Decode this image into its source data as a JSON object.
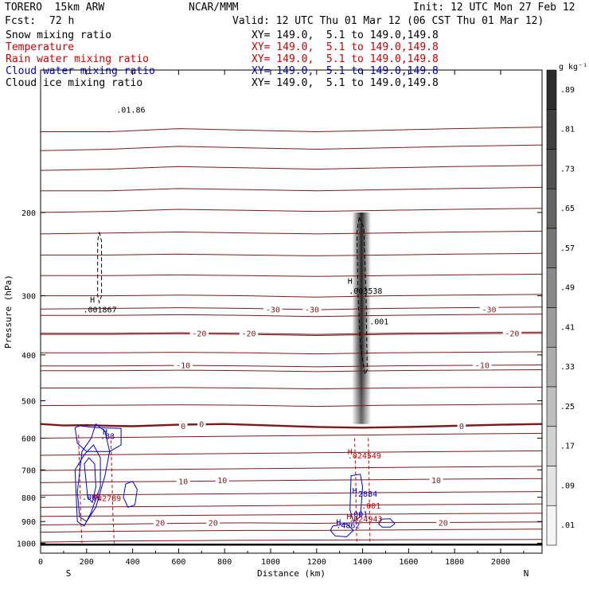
{
  "header": {
    "model": "TORERO  15km ARW",
    "org": "NCAR/MMM",
    "init": "Init: 12 UTC Mon 27 Feb 12",
    "fcst_label": "Fcst:",
    "fcst_value": "72 h",
    "valid": "Valid: 12 UTC Thu 01 Mar 12 (06 CST Thu 01 Mar 12)"
  },
  "fields": [
    {
      "name": "Snow mixing ratio",
      "color": "#000000",
      "xy": "XY= 149.0,  5.1 to 149.0,149.8"
    },
    {
      "name": "Temperature",
      "color": "#cc0000",
      "xy": "XY= 149.0,  5.1 to 149.0,149.8"
    },
    {
      "name": "Rain water mixing ratio",
      "color": "#cc0000",
      "xy": "XY= 149.0,  5.1 to 149.0,149.8"
    },
    {
      "name": "Cloud water mixing ratio",
      "color": "#0000cc",
      "xy": "XY= 149.0,  5.1 to 149.0,149.8"
    },
    {
      "name": "Cloud ice mixing ratio",
      "color": "#000000",
      "xy": "XY= 149.0,  5.1 to 149.0,149.8"
    }
  ],
  "chart_data": {
    "type": "contour",
    "xlabel": "Distance (km)",
    "ylabel": "Pressure (hPa)",
    "xlim": [
      0,
      2180
    ],
    "ylim": [
      1050,
      100
    ],
    "x_ticks": [
      0,
      200,
      400,
      600,
      800,
      1000,
      1200,
      1400,
      1600,
      1800,
      2000
    ],
    "y_ticks": [
      200,
      300,
      400,
      500,
      600,
      700,
      800,
      900,
      1000
    ],
    "endpoints": {
      "left": "S",
      "right": "N"
    },
    "colorbar": {
      "unit": "g kg⁻¹",
      "labels": [
        ".01",
        ".09",
        ".17",
        ".25",
        ".33",
        ".41",
        ".49",
        ".57",
        ".65",
        ".73",
        ".81",
        ".89"
      ],
      "range": [
        0,
        0.97
      ]
    },
    "temperature_labels": [
      {
        "text": "-30",
        "x": 1010,
        "p": 320
      },
      {
        "text": "-30",
        "x": 1180,
        "p": 320
      },
      {
        "text": "-30",
        "x": 1950,
        "p": 320
      },
      {
        "text": "-20",
        "x": 690,
        "p": 360
      },
      {
        "text": "-20",
        "x": 905,
        "p": 360
      },
      {
        "text": "-20",
        "x": 2050,
        "p": 360
      },
      {
        "text": "-10",
        "x": 620,
        "p": 420
      },
      {
        "text": "-10",
        "x": 1920,
        "p": 420
      },
      {
        "text": "0",
        "x": 620,
        "p": 565
      },
      {
        "text": "0",
        "x": 700,
        "p": 560
      },
      {
        "text": "0",
        "x": 1830,
        "p": 565
      },
      {
        "text": "10",
        "x": 620,
        "p": 740
      },
      {
        "text": "10",
        "x": 790,
        "p": 735
      },
      {
        "text": "10",
        "x": 1720,
        "p": 735
      },
      {
        "text": "20",
        "x": 520,
        "p": 905
      },
      {
        "text": "20",
        "x": 750,
        "p": 905
      },
      {
        "text": "20",
        "x": 1750,
        "p": 905
      }
    ],
    "temperature_isotherms": [
      {
        "x": [
          0,
          300,
          600,
          900,
          1200,
          1500,
          1800,
          2180
        ],
        "p": [
          135,
          135,
          133,
          134,
          135,
          134,
          133,
          132
        ]
      },
      {
        "x": [
          0,
          300,
          600,
          900,
          1200,
          1500,
          1800,
          2180
        ],
        "p": [
          148,
          147,
          145,
          146,
          147,
          146,
          145,
          144
        ]
      },
      {
        "x": [
          0,
          300,
          600,
          900,
          1200,
          1500,
          1800,
          2180
        ],
        "p": [
          163,
          162,
          160,
          161,
          162,
          161,
          160,
          159
        ]
      },
      {
        "x": [
          0,
          300,
          600,
          900,
          1200,
          1500,
          1800,
          2180
        ],
        "p": [
          180,
          180,
          178,
          179,
          180,
          179,
          178,
          177
        ]
      },
      {
        "x": [
          0,
          300,
          600,
          900,
          1200,
          1500,
          1800,
          2180
        ],
        "p": [
          200,
          199,
          197,
          198,
          199,
          198,
          197,
          196
        ]
      },
      {
        "x": [
          0,
          300,
          600,
          900,
          1200,
          1500,
          1800,
          2180
        ],
        "p": [
          222,
          221,
          220,
          221,
          222,
          221,
          220,
          219
        ]
      },
      {
        "x": [
          0,
          300,
          600,
          900,
          1200,
          1500,
          1800,
          2180
        ],
        "p": [
          246,
          246,
          245,
          246,
          247,
          246,
          245,
          244
        ]
      },
      {
        "x": [
          0,
          300,
          600,
          900,
          1200,
          1500,
          1800,
          2180
        ],
        "p": [
          272,
          272,
          271,
          272,
          273,
          272,
          271,
          270
        ]
      },
      {
        "x": [
          0,
          300,
          600,
          900,
          1200,
          1500,
          1800,
          2180
        ],
        "p": [
          300,
          300,
          299,
          300,
          302,
          300,
          299,
          298
        ]
      },
      {
        "x": [
          0,
          300,
          600,
          900,
          1200,
          1500,
          1800,
          2180
        ],
        "p": [
          330,
          330,
          329,
          330,
          332,
          330,
          329,
          328
        ]
      },
      {
        "x": [
          0,
          300,
          600,
          900,
          1200,
          1500,
          1800,
          2180
        ],
        "p": [
          362,
          362,
          361,
          362,
          364,
          362,
          361,
          360
        ]
      },
      {
        "x": [
          0,
          300,
          600,
          900,
          1200,
          1500,
          1800,
          2180
        ],
        "p": [
          396,
          396,
          395,
          396,
          398,
          396,
          395,
          394
        ]
      },
      {
        "x": [
          0,
          300,
          600,
          900,
          1200,
          1500,
          1800,
          2180
        ],
        "p": [
          432,
          432,
          431,
          432,
          434,
          432,
          431,
          430
        ]
      },
      {
        "x": [
          0,
          300,
          600,
          900,
          1200,
          1500,
          1800,
          2180
        ],
        "p": [
          470,
          470,
          469,
          470,
          472,
          470,
          469,
          468
        ]
      },
      {
        "x": [
          0,
          300,
          600,
          900,
          1200,
          1500,
          1800,
          2180
        ],
        "p": [
          512,
          511,
          510,
          511,
          514,
          511,
          510,
          508
        ]
      },
      {
        "x": [
          0,
          300,
          600,
          900,
          1200,
          1500,
          1800,
          2180
        ],
        "p": [
          600,
          598,
          596,
          594,
          592,
          590,
          588,
          586
        ]
      },
      {
        "x": [
          0,
          300,
          600,
          900,
          1200,
          1500,
          1800,
          2180
        ],
        "p": [
          652,
          650,
          648,
          646,
          644,
          642,
          640,
          638
        ]
      },
      {
        "x": [
          0,
          300,
          600,
          900,
          1200,
          1500,
          1800,
          2180
        ],
        "p": [
          702,
          700,
          698,
          696,
          694,
          692,
          690,
          688
        ]
      },
      {
        "x": [
          0,
          300,
          600,
          900,
          1200,
          1500,
          1800,
          2180
        ],
        "p": [
          792,
          790,
          788,
          786,
          784,
          782,
          780,
          778
        ]
      },
      {
        "x": [
          0,
          300,
          600,
          900,
          1200,
          1500,
          1800,
          2180
        ],
        "p": [
          840,
          838,
          836,
          834,
          832,
          830,
          828,
          826
        ]
      },
      {
        "x": [
          0,
          300,
          600,
          900,
          1200,
          1500,
          1800,
          2180
        ],
        "p": [
          878,
          876,
          874,
          872,
          870,
          868,
          866,
          864
        ]
      },
      {
        "x": [
          0,
          300,
          600,
          900,
          1200,
          1500,
          1800,
          2180
        ],
        "p": [
          948,
          944,
          942,
          940,
          940,
          938,
          936,
          934
        ]
      },
      {
        "x": [
          0,
          300,
          600,
          900,
          1200,
          1500,
          1800,
          2180
        ],
        "p": [
          995,
          990,
          988,
          986,
          985,
          984,
          983,
          982
        ]
      }
    ],
    "temperature_labeled_isotherms": [
      {
        "value": -30,
        "x": [
          0,
          300,
          600,
          900,
          1200,
          1500,
          1800,
          2180
        ],
        "p": [
          320,
          319,
          318,
          319,
          321,
          319,
          318,
          317
        ]
      },
      {
        "value": -20,
        "x": [
          0,
          300,
          600,
          900,
          1200,
          1500,
          1800,
          2180
        ],
        "p": [
          360,
          360,
          359,
          360,
          362,
          360,
          359,
          358
        ]
      },
      {
        "value": -10,
        "x": [
          0,
          300,
          600,
          900,
          1200,
          1500,
          1800,
          2180
        ],
        "p": [
          422,
          422,
          421,
          422,
          424,
          422,
          421,
          420
        ]
      },
      {
        "value": 10,
        "x": [
          0,
          300,
          600,
          900,
          1200,
          1500,
          1800,
          2180
        ],
        "p": [
          745,
          742,
          740,
          738,
          736,
          734,
          732,
          730
        ]
      },
      {
        "value": 20,
        "x": [
          0,
          300,
          600,
          900,
          1200,
          1500,
          1800,
          2180
        ],
        "p": [
          915,
          912,
          908,
          906,
          908,
          904,
          904,
          902
        ]
      }
    ],
    "freezing_line": {
      "value": 0,
      "x": [
        0,
        100,
        200,
        300,
        400,
        600,
        800,
        1000,
        1200,
        1400,
        1600,
        1800,
        2000,
        2180
      ],
      "p": [
        560,
        564,
        563,
        565,
        566,
        562,
        560,
        564,
        568,
        570,
        568,
        565,
        562,
        560
      ]
    },
    "ground_line": {
      "p": 1007
    },
    "snow_column": {
      "x": 1395,
      "p_top": 200,
      "p_bottom": 560
    },
    "cloud_ice_contours": [
      {
        "x": [
          255,
          265,
          265,
          255,
          248,
          248,
          255
        ],
        "p": [
          220,
          230,
          300,
          310,
          300,
          230,
          220
        ]
      },
      {
        "x": [
          1385,
          1405,
          1415,
          1420,
          1410,
          1390,
          1380,
          1375,
          1385
        ],
        "p": [
          205,
          215,
          300,
          430,
          440,
          380,
          300,
          220,
          205
        ]
      }
    ],
    "cloud_water_contours": [
      {
        "x": [
          150,
          170,
          240,
          350,
          350,
          300,
          200,
          160,
          150
        ],
        "p": [
          570,
          565,
          570,
          572,
          620,
          640,
          640,
          615,
          570
        ]
      },
      {
        "x": [
          180,
          220,
          240,
          280,
          300,
          280,
          240,
          200,
          170,
          160,
          180
        ],
        "p": [
          640,
          600,
          560,
          580,
          640,
          720,
          840,
          900,
          880,
          780,
          640
        ]
      },
      {
        "x": [
          150,
          190,
          230,
          260,
          260,
          220,
          190,
          160,
          150
        ],
        "p": [
          700,
          650,
          620,
          660,
          760,
          860,
          920,
          900,
          700
        ]
      },
      {
        "x": [
          190,
          210,
          235,
          240,
          225,
          205,
          190
        ],
        "p": [
          680,
          660,
          680,
          760,
          820,
          800,
          680
        ]
      },
      {
        "x": [
          370,
          400,
          420,
          410,
          380,
          360,
          370
        ],
        "p": [
          750,
          740,
          770,
          830,
          840,
          800,
          750
        ]
      },
      {
        "x": [
          1350,
          1390,
          1400,
          1390,
          1360,
          1345,
          1350
        ],
        "p": [
          720,
          715,
          760,
          880,
          900,
          850,
          720
        ]
      },
      {
        "x": [
          1270,
          1330,
          1360,
          1330,
          1280,
          1260,
          1270
        ],
        "p": [
          920,
          910,
          940,
          970,
          965,
          940,
          920
        ]
      },
      {
        "x": [
          1480,
          1520,
          1540,
          1520,
          1485,
          1470,
          1480
        ],
        "p": [
          890,
          888,
          910,
          925,
          925,
          910,
          890
        ]
      }
    ],
    "rain_water_contours": [
      {
        "x": [
          165,
          170,
          175,
          180
        ],
        "p": [
          590,
          720,
          880,
          1000
        ]
      },
      {
        "x": [
          305,
          310,
          315,
          320
        ],
        "p": [
          590,
          720,
          880,
          1000
        ]
      },
      {
        "x": [
          1365,
          1370,
          1372,
          1375
        ],
        "p": [
          600,
          720,
          880,
          1000
        ]
      },
      {
        "x": [
          1425,
          1428,
          1430,
          1432
        ],
        "p": [
          600,
          720,
          880,
          1000
        ]
      }
    ],
    "annotations": [
      {
        "text": "H",
        "x": 1335,
        "p": 283,
        "color": "#000000"
      },
      {
        "text": ".003538",
        "x": 1340,
        "p": 297,
        "color": "#000000"
      },
      {
        "text": ".001",
        "x": 1430,
        "p": 345,
        "color": "#000000"
      },
      {
        "text": "H",
        "x": 215,
        "p": 310,
        "color": "#000000"
      },
      {
        "text": ".001867",
        "x": 185,
        "p": 325,
        "color": "#000000"
      },
      {
        "text": "H",
        "x": 270,
        "p": 590,
        "color": "#0000cc"
      },
      {
        "text": ".83",
        "x": 260,
        "p": 602,
        "color": "#0000cc"
      },
      {
        "text": ".001",
        "x": 180,
        "p": 810,
        "color": "#0000cc"
      },
      {
        "text": "H",
        "x": 230,
        "p": 805,
        "color": "#cc0000"
      },
      {
        "text": ".02789",
        "x": 225,
        "p": 815,
        "color": "#cc0000"
      },
      {
        "text": "H",
        "x": 1335,
        "p": 650,
        "color": "#cc0000"
      },
      {
        "text": ".024549",
        "x": 1335,
        "p": 662,
        "color": "#cc0000"
      },
      {
        "text": "H",
        "x": 1355,
        "p": 785,
        "color": "#0000cc"
      },
      {
        "text": ".2884",
        "x": 1360,
        "p": 797,
        "color": "#0000cc"
      },
      {
        "text": ".001",
        "x": 1395,
        "p": 845,
        "color": "#cc0000"
      },
      {
        "text": ".001",
        "x": 1340,
        "p": 880,
        "color": "#0000cc"
      },
      {
        "text": "H",
        "x": 1330,
        "p": 890,
        "color": "#cc0000"
      },
      {
        "text": ".024943",
        "x": 1340,
        "p": 901,
        "color": "#cc0000"
      },
      {
        "text": "H",
        "x": 1285,
        "p": 915,
        "color": "#0000cc"
      },
      {
        "text": ".4862",
        "x": 1285,
        "p": 930,
        "color": "#0000cc"
      },
      {
        "text": ".01.86",
        "x": 330,
        "p": 123,
        "color": "#000000"
      }
    ]
  }
}
